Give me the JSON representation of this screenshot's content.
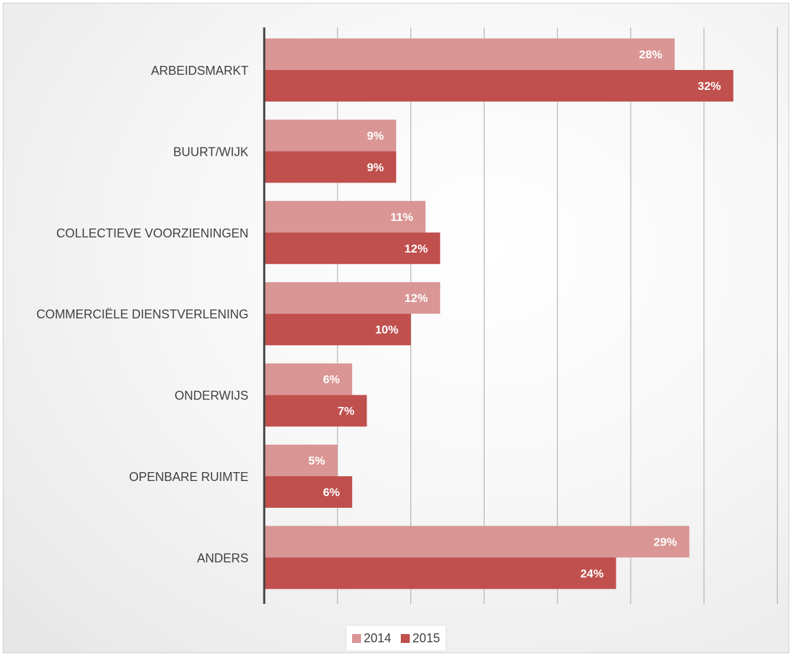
{
  "chart_data": {
    "type": "bar",
    "orientation": "horizontal",
    "categories": [
      "ARBEIDSMARKT",
      "BUURT/WIJK",
      "COLLECTIEVE VOORZIENINGEN",
      "COMMERCIËLE DIENSTVERLENING",
      "ONDERWIJS",
      "OPENBARE RUIMTE",
      "ANDERS"
    ],
    "series": [
      {
        "name": "2014",
        "color": "#d99694",
        "values": [
          28,
          9,
          11,
          12,
          6,
          5,
          29
        ],
        "labels": [
          "28%",
          "9%",
          "11%",
          "12%",
          "6%",
          "5%",
          "29%"
        ]
      },
      {
        "name": "2015",
        "color": "#c0504d",
        "values": [
          32,
          9,
          12,
          10,
          7,
          6,
          24
        ],
        "labels": [
          "32%",
          "9%",
          "12%",
          "10%",
          "7%",
          "6%",
          "24%"
        ]
      }
    ],
    "xlim": [
      0,
      35
    ],
    "grid": true,
    "legend": "bottom",
    "data_labels": true,
    "title": "",
    "xlabel": "",
    "ylabel": ""
  },
  "legend": {
    "items": [
      {
        "label": "2014",
        "color": "#d99694"
      },
      {
        "label": "2015",
        "color": "#c0504d"
      }
    ]
  }
}
